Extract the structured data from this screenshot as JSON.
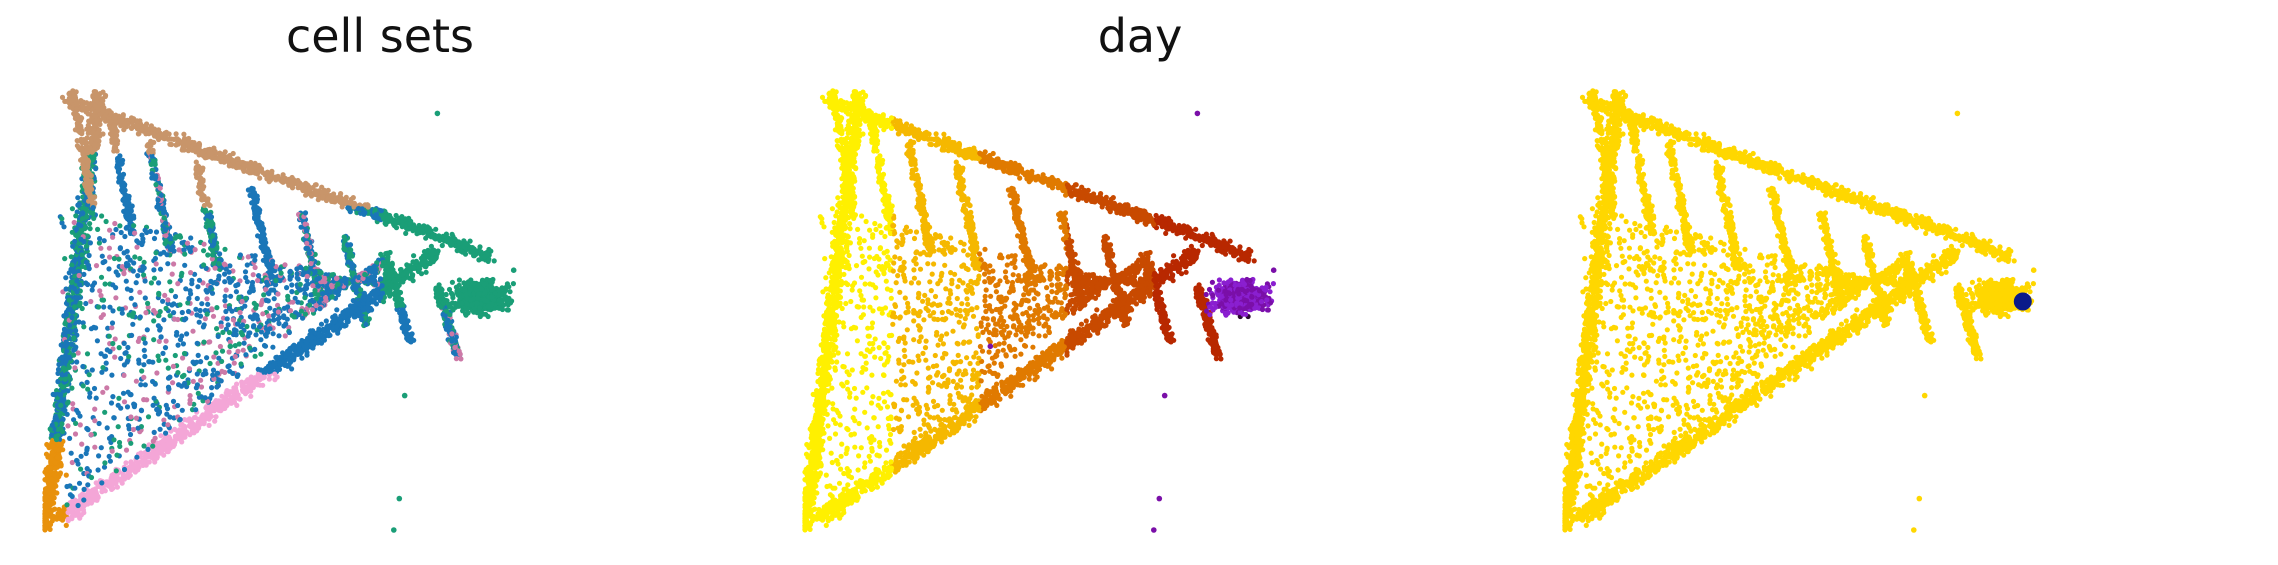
{
  "chart_data": [
    {
      "type": "scatter",
      "title": "cell sets",
      "xlabel": "",
      "ylabel": "",
      "axes_visible": false,
      "grid": false,
      "legend": "none",
      "colors": [
        "#c8956a",
        "#1a9e77",
        "#1a76b8",
        "#f4a6d7",
        "#e8910c",
        "#cc79a7",
        "#d55e00"
      ],
      "outliers": [
        [
          0.72,
          0.93
        ],
        [
          0.86,
          0.58
        ],
        [
          0.82,
          0.52
        ],
        [
          0.66,
          0.3
        ],
        [
          0.65,
          0.07
        ],
        [
          0.64,
          0.0
        ],
        [
          0.34,
          0.41
        ]
      ]
    },
    {
      "type": "scatter",
      "title": "day",
      "xlabel": "",
      "ylabel": "",
      "axes_visible": false,
      "grid": false,
      "legend": "none",
      "colors": [
        "#fff000",
        "#f5b800",
        "#e07a00",
        "#c84a00",
        "#b82800",
        "#8a1fd0",
        "#7a0fa8",
        "#2a0a30"
      ],
      "outliers": [
        [
          0.72,
          0.93
        ],
        [
          0.86,
          0.58
        ],
        [
          0.82,
          0.52
        ],
        [
          0.66,
          0.3
        ],
        [
          0.65,
          0.07
        ],
        [
          0.64,
          0.0
        ],
        [
          0.34,
          0.41
        ]
      ]
    },
    {
      "type": "scatter",
      "title": "",
      "xlabel": "",
      "ylabel": "",
      "axes_visible": false,
      "grid": false,
      "legend": "none",
      "colors": [
        "#ffd700",
        "#0a1a8a"
      ],
      "highlight": [
        0.84,
        0.51
      ],
      "outliers": [
        [
          0.72,
          0.93
        ],
        [
          0.86,
          0.58
        ],
        [
          0.82,
          0.52
        ],
        [
          0.66,
          0.3
        ],
        [
          0.65,
          0.07
        ],
        [
          0.64,
          0.0
        ],
        [
          0.34,
          0.41
        ]
      ]
    }
  ]
}
